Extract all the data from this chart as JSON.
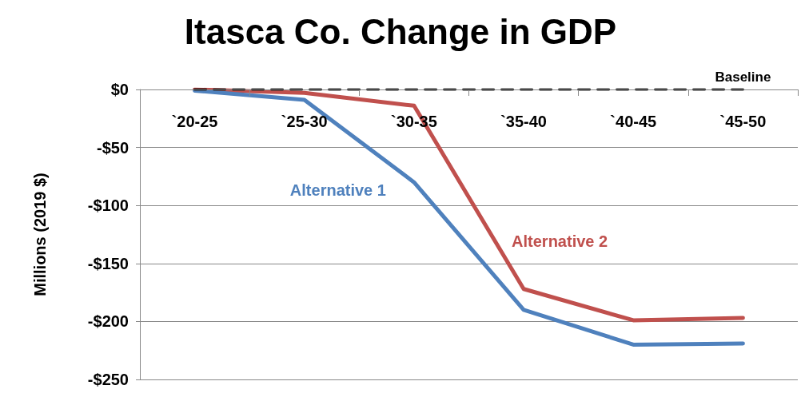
{
  "chart_data": {
    "type": "line",
    "title": "Itasca Co. Change in GDP",
    "ylabel": "Millions (2019 $)",
    "categories": [
      "`20-25",
      "`25-30",
      "`30-35",
      "`35-40",
      "`40-45",
      "`45-50"
    ],
    "series": [
      {
        "name": "Baseline",
        "color": "#000000",
        "line_style": "dashed",
        "values": [
          0,
          0,
          0,
          0,
          0,
          0
        ]
      },
      {
        "name": "Alternative 1",
        "color": "#4f81bd",
        "values": [
          -1,
          -9,
          -80,
          -190,
          -220,
          -219
        ]
      },
      {
        "name": "Alternative 2",
        "color": "#c0504d",
        "values": [
          0,
          -3,
          -14,
          -172,
          -199,
          -197
        ]
      }
    ],
    "ylim": [
      -250,
      0
    ],
    "yticks": [
      {
        "value": 0,
        "label": "$0"
      },
      {
        "value": -50,
        "label": "-$50"
      },
      {
        "value": -100,
        "label": "-$100"
      },
      {
        "value": -150,
        "label": "-$150"
      },
      {
        "value": -200,
        "label": "-$200"
      },
      {
        "value": -250,
        "label": "-$250"
      }
    ],
    "grid": "y",
    "legend": false,
    "marker": "none"
  }
}
